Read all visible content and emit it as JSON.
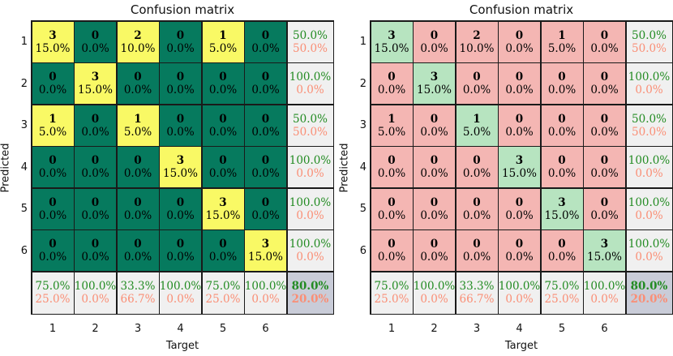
{
  "chart_data": [
    {
      "type": "heatmap",
      "title": "Confusion matrix",
      "xlabel": "Target",
      "ylabel": "Predicted",
      "x_tick_labels": [
        "1",
        "2",
        "3",
        "4",
        "5",
        "6"
      ],
      "y_tick_labels": [
        "1",
        "2",
        "3",
        "4",
        "5",
        "6"
      ],
      "cell_style": "nonzero_vs_zero",
      "counts": [
        [
          3,
          0,
          2,
          0,
          1,
          0
        ],
        [
          0,
          3,
          0,
          0,
          0,
          0
        ],
        [
          1,
          0,
          1,
          0,
          0,
          0
        ],
        [
          0,
          0,
          0,
          3,
          0,
          0
        ],
        [
          0,
          0,
          0,
          0,
          3,
          0
        ],
        [
          0,
          0,
          0,
          0,
          0,
          3
        ]
      ],
      "percent_labels": [
        [
          "15.0%",
          "0.0%",
          "10.0%",
          "0.0%",
          "5.0%",
          "0.0%"
        ],
        [
          "0.0%",
          "15.0%",
          "0.0%",
          "0.0%",
          "0.0%",
          "0.0%"
        ],
        [
          "5.0%",
          "0.0%",
          "5.0%",
          "0.0%",
          "0.0%",
          "0.0%"
        ],
        [
          "0.0%",
          "0.0%",
          "0.0%",
          "15.0%",
          "0.0%",
          "0.0%"
        ],
        [
          "0.0%",
          "0.0%",
          "0.0%",
          "0.0%",
          "15.0%",
          "0.0%"
        ],
        [
          "0.0%",
          "0.0%",
          "0.0%",
          "0.0%",
          "0.0%",
          "15.0%"
        ]
      ],
      "row_summary": [
        [
          "50.0%",
          "50.0%"
        ],
        [
          "100.0%",
          "0.0%"
        ],
        [
          "50.0%",
          "50.0%"
        ],
        [
          "100.0%",
          "0.0%"
        ],
        [
          "100.0%",
          "0.0%"
        ],
        [
          "100.0%",
          "0.0%"
        ]
      ],
      "col_summary": [
        [
          "75.0%",
          "25.0%"
        ],
        [
          "100.0%",
          "0.0%"
        ],
        [
          "33.3%",
          "66.7%"
        ],
        [
          "100.0%",
          "0.0%"
        ],
        [
          "75.0%",
          "25.0%"
        ],
        [
          "100.0%",
          "0.0%"
        ]
      ],
      "overall_summary": [
        "80.0%",
        "20.0%"
      ],
      "colors": {
        "highlight": "#f9f965",
        "base": "#067a5e",
        "summary_bg": "#f0f0f0",
        "corner_bg": "#c9ccd8",
        "good_text": "#228b22",
        "bad_text": "#fa8e75"
      }
    },
    {
      "type": "heatmap",
      "title": "Confusion matrix",
      "xlabel": "Target",
      "ylabel": "Predicted",
      "x_tick_labels": [
        "1",
        "2",
        "3",
        "4",
        "5",
        "6"
      ],
      "y_tick_labels": [
        "1",
        "2",
        "3",
        "4",
        "5",
        "6"
      ],
      "cell_style": "diagonal_vs_offdiagonal",
      "counts": [
        [
          3,
          0,
          2,
          0,
          1,
          0
        ],
        [
          0,
          3,
          0,
          0,
          0,
          0
        ],
        [
          1,
          0,
          1,
          0,
          0,
          0
        ],
        [
          0,
          0,
          0,
          3,
          0,
          0
        ],
        [
          0,
          0,
          0,
          0,
          3,
          0
        ],
        [
          0,
          0,
          0,
          0,
          0,
          3
        ]
      ],
      "percent_labels": [
        [
          "15.0%",
          "0.0%",
          "10.0%",
          "0.0%",
          "5.0%",
          "0.0%"
        ],
        [
          "0.0%",
          "15.0%",
          "0.0%",
          "0.0%",
          "0.0%",
          "0.0%"
        ],
        [
          "5.0%",
          "0.0%",
          "5.0%",
          "0.0%",
          "0.0%",
          "0.0%"
        ],
        [
          "0.0%",
          "0.0%",
          "0.0%",
          "15.0%",
          "0.0%",
          "0.0%"
        ],
        [
          "0.0%",
          "0.0%",
          "0.0%",
          "0.0%",
          "15.0%",
          "0.0%"
        ],
        [
          "0.0%",
          "0.0%",
          "0.0%",
          "0.0%",
          "0.0%",
          "15.0%"
        ]
      ],
      "row_summary": [
        [
          "50.0%",
          "50.0%"
        ],
        [
          "100.0%",
          "0.0%"
        ],
        [
          "50.0%",
          "50.0%"
        ],
        [
          "100.0%",
          "0.0%"
        ],
        [
          "100.0%",
          "0.0%"
        ],
        [
          "100.0%",
          "0.0%"
        ]
      ],
      "col_summary": [
        [
          "75.0%",
          "25.0%"
        ],
        [
          "100.0%",
          "0.0%"
        ],
        [
          "33.3%",
          "66.7%"
        ],
        [
          "100.0%",
          "0.0%"
        ],
        [
          "75.0%",
          "25.0%"
        ],
        [
          "100.0%",
          "0.0%"
        ]
      ],
      "overall_summary": [
        "80.0%",
        "20.0%"
      ],
      "colors": {
        "diagonal": "#b7e4c0",
        "off_diagonal": "#f4b6b3",
        "summary_bg": "#f0f0f0",
        "corner_bg": "#c9ccd8",
        "good_text": "#228b22",
        "bad_text": "#fa8e75"
      }
    }
  ]
}
